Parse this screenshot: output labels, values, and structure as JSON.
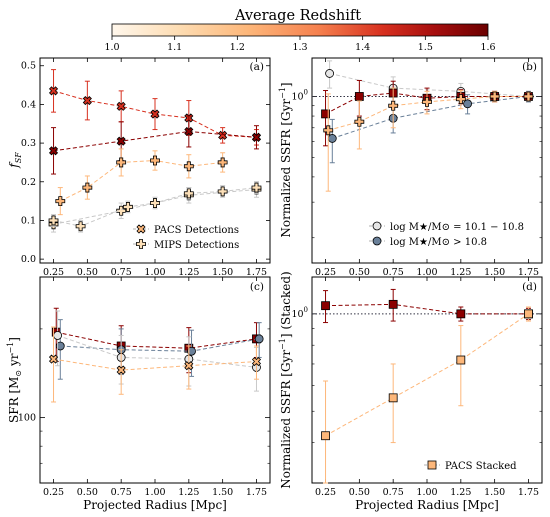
{
  "colorbar": {
    "title": "Average Redshift",
    "ticks": [
      "1.0",
      "1.1",
      "1.2",
      "1.3",
      "1.4",
      "1.5",
      "1.6"
    ],
    "range": [
      1.0,
      1.6
    ],
    "colors": [
      "#fff7ec",
      "#fddcb2",
      "#fdb77a",
      "#f5804e",
      "#d7301f",
      "#a50e0e",
      "#6b0000"
    ]
  },
  "chart_data": [
    {
      "panel": "(a)",
      "type": "scatter",
      "ylabel": "f_SF",
      "xlabel": "",
      "xlim": [
        0.15,
        1.85
      ],
      "ylim": [
        -0.01,
        0.52
      ],
      "xticks": [
        "0.25",
        "0.50",
        "0.75",
        "1.00",
        "1.25",
        "1.50",
        "1.75"
      ],
      "yticks": [
        "0.0",
        "0.1",
        "0.2",
        "0.3",
        "0.4",
        "0.5"
      ],
      "legend": [
        "PACS Detections",
        "MIPS Detections"
      ],
      "series": [
        {
          "marker": "x-circle",
          "color": "#d7301f",
          "x": [
            0.25,
            0.5,
            0.75,
            1.0,
            1.25,
            1.5,
            1.75
          ],
          "y": [
            0.435,
            0.41,
            0.395,
            0.375,
            0.365,
            0.32,
            0.315
          ],
          "err": [
            0.055,
            0.05,
            0.04,
            0.04,
            0.045,
            0.02,
            0.02
          ]
        },
        {
          "marker": "x-circle",
          "color": "#8b0000",
          "x": [
            0.25,
            0.75,
            1.25,
            1.75
          ],
          "y": [
            0.28,
            0.305,
            0.33,
            0.315
          ],
          "err": [
            0.06,
            0.05,
            0.04,
            0.03
          ]
        },
        {
          "marker": "plus",
          "color": "#fdb77a",
          "x": [
            0.3,
            0.5,
            0.75,
            1.0,
            1.25,
            1.5
          ],
          "y": [
            0.15,
            0.185,
            0.25,
            0.255,
            0.24,
            0.25
          ],
          "err": [
            0.035,
            0.03,
            0.035,
            0.025,
            0.03,
            0.025
          ]
        },
        {
          "marker": "plus",
          "color": "#fde0b8",
          "x": [
            0.25,
            0.75,
            1.25,
            1.75
          ],
          "y": [
            0.09,
            0.125,
            0.165,
            0.18
          ],
          "err": [
            0.02,
            0.02,
            0.02,
            0.02
          ]
        },
        {
          "marker": "plus",
          "color": "#fde0b8",
          "x": [
            0.25,
            0.45,
            0.8,
            1.0,
            1.25,
            1.5,
            1.75
          ],
          "y": [
            0.1,
            0.085,
            0.135,
            0.145,
            0.17,
            0.175,
            0.185
          ],
          "err": [
            0.015,
            0.015,
            0.015,
            0.015,
            0.015,
            0.015,
            0.015
          ]
        }
      ]
    },
    {
      "panel": "(b)",
      "type": "scatter",
      "ylabel": "Normalized SSFR [Gyr⁻¹]",
      "xlim": [
        0.15,
        1.85
      ],
      "ylog": true,
      "ylim": [
        0.15,
        1.55
      ],
      "yticks": [
        "10⁰"
      ],
      "xticks": [
        "0.25",
        "0.50",
        "0.75",
        "1.00",
        "1.25",
        "1.50",
        "1.75"
      ],
      "legend": [
        "log M★/M⊙ = 10.1 − 10.8",
        "log M★/M⊙ > 10.8"
      ],
      "series": [
        {
          "marker": "circle",
          "color": "#e6e6e6",
          "x": [
            0.28,
            0.75,
            1.25,
            1.75
          ],
          "y": [
            1.3,
            1.1,
            1.06,
            1.0
          ],
          "err": [
            0.2,
            0.15,
            0.1,
            0.06
          ]
        },
        {
          "marker": "circle",
          "color": "#6a8099",
          "x": [
            0.3,
            0.75,
            1.3,
            1.75
          ],
          "y": [
            0.62,
            0.78,
            0.92,
            1.0
          ],
          "err": [
            0.15,
            0.12,
            0.1,
            0.06
          ]
        },
        {
          "marker": "square",
          "color": "#8b0000",
          "x": [
            0.25,
            0.5,
            0.75,
            1.0,
            1.25,
            1.5,
            1.75
          ],
          "y": [
            0.82,
            1.0,
            1.04,
            0.98,
            1.0,
            1.0,
            1.0
          ],
          "err": [
            0.25,
            0.2,
            0.15,
            0.12,
            0.08,
            0.06,
            0.05
          ]
        },
        {
          "marker": "plus",
          "color": "#fdb77a",
          "x": [
            0.27,
            0.5,
            0.75,
            1.0,
            1.25,
            1.5,
            1.75
          ],
          "y": [
            0.68,
            0.75,
            0.9,
            0.94,
            0.97,
            1.0,
            1.0
          ],
          "err": [
            0.35,
            0.2,
            0.2,
            0.12,
            0.1,
            0.06,
            0.05
          ]
        }
      ]
    },
    {
      "panel": "(c)",
      "type": "scatter",
      "ylabel": "SFR [M⊙ yr⁻¹]",
      "xlabel": "Projected Radius [Mpc]",
      "xlim": [
        0.15,
        1.85
      ],
      "ylog": true,
      "yticks": [
        "100"
      ],
      "xticks": [
        "0.25",
        "0.50",
        "0.75",
        "1.00",
        "1.25",
        "1.50",
        "1.75"
      ],
      "series": [
        {
          "marker": "square",
          "color": "#8b0000",
          "x": [
            0.27,
            0.75,
            1.25,
            1.75
          ],
          "y": [
            195,
            175,
            172,
            185
          ],
          "err": [
            40,
            30,
            30,
            25
          ]
        },
        {
          "marker": "circle",
          "color": "#6a8099",
          "x": [
            0.3,
            0.75,
            1.27,
            1.77
          ],
          "y": [
            175,
            170,
            168,
            185
          ],
          "err": [
            40,
            30,
            30,
            25
          ]
        },
        {
          "marker": "circle",
          "color": "#e6e6e6",
          "x": [
            0.28,
            0.75,
            1.25,
            1.75
          ],
          "y": [
            190,
            160,
            158,
            148
          ],
          "err": [
            40,
            30,
            30,
            25
          ]
        },
        {
          "marker": "x-circle",
          "color": "#fdb77a",
          "x": [
            0.25,
            0.75,
            1.25,
            1.75
          ],
          "y": [
            158,
            145,
            150,
            155
          ],
          "err": [
            45,
            25,
            25,
            20
          ]
        }
      ]
    },
    {
      "panel": "(d)",
      "type": "scatter",
      "ylabel": "Normalized SSFR [Gyr⁻¹] (Stacked)",
      "xlabel": "Projected Radius [Mpc]",
      "xlim": [
        0.15,
        1.85
      ],
      "ylog": true,
      "ylim": [
        0.3,
        1.3
      ],
      "yticks": [
        "10⁰"
      ],
      "xticks": [
        "0.25",
        "0.50",
        "0.75",
        "1.00",
        "1.25",
        "1.50",
        "1.75"
      ],
      "legend": [
        "PACS Stacked"
      ],
      "series": [
        {
          "marker": "square",
          "color": "#8b0000",
          "x": [
            0.25,
            0.75,
            1.25,
            1.75
          ],
          "y": [
            1.06,
            1.07,
            1.0,
            1.0
          ],
          "err": [
            0.12,
            0.12,
            0.05,
            0.04
          ]
        },
        {
          "marker": "square",
          "color": "#fdb77a",
          "x": [
            0.25,
            0.75,
            1.25,
            1.75
          ],
          "y": [
            0.42,
            0.55,
            0.72,
            1.0
          ],
          "err": [
            0.2,
            0.15,
            0.2,
            0.05
          ]
        }
      ]
    }
  ],
  "labels": {
    "a_ylabel": "f",
    "a_ysub": "SF",
    "b_ylabel": "Normalized SSFR [Gyr",
    "b_ysup": "−1",
    "c_ylabel": "SFR [M",
    "c_sun": "⊙",
    "c_rest": " yr",
    "c_sup": "−1",
    "d_ylabel": "Normalized SSFR [Gyr",
    "d_ysup": "−1",
    "d_rest": "] (Stacked)",
    "xlabel": "Projected Radius [Mpc]"
  }
}
